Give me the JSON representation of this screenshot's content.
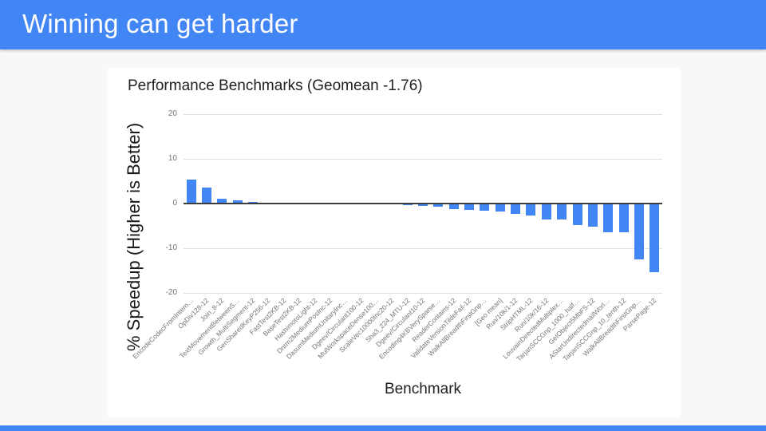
{
  "slide": {
    "title": "Winning can get harder",
    "accent_color": "#4285F4"
  },
  "chart": {
    "title": "Performance Benchmarks (Geomean -1.76)",
    "y_axis_title": "% Speedup (Higher is Better)",
    "x_axis_title": "Benchmark"
  },
  "chart_data": {
    "type": "bar",
    "title": "Performance Benchmarks (Geomean -1.76)",
    "xlabel": "Benchmark",
    "ylabel": "% Speedup (Higher is Better)",
    "ylim": [
      -20,
      20
    ],
    "yticks": [
      20,
      10,
      0,
      -10,
      -20
    ],
    "grid": true,
    "legend_position": "none",
    "bar_color": "#4285F4",
    "categories": [
      "EncodeCodecFromIntern…",
      "OpDiv128-12",
      "Join_8-12",
      "TextMovementBetweenS…",
      "Growth_MultiSegment-12",
      "GenSharedKeyP256-12",
      "FastTest2KB-12",
      "BaseTest2KB-12",
      "HashimotoLight-12",
      "Dnrm2MediumPosInc-12",
      "DasumMediumUnitaryInc…",
      "Dgeev/Circulant100-12",
      "MulWorkspaceDense100…",
      "ScaleVec10000Inc20-12",
      "Sha3_224_MTU-12",
      "Dgeev/Circulant10-12",
      "Encoding4KBVerySparse…",
      "ReaderContains-12",
      "ValidateVersionTildeFail-12",
      "WalkAllBreadthFirstGnp…",
      "[Geo mean]",
      "Run/10k/1-12",
      "StripHTML-12",
      "Run/10k/16-12",
      "LouvainDirectedMultiplex…",
      "TarjanSCCGnp_1000_half…",
      "GetObject5MbFS-12",
      "AStarUndirectedmailWorl…",
      "TarjanSCCGnp_10_tenth-12",
      "WalkAllBreadthFirstGnp…",
      "ParsePage-12"
    ],
    "values": [
      5.3,
      3.5,
      1.0,
      0.7,
      0.4,
      0.2,
      0.05,
      0.03,
      0.0,
      0.0,
      0.0,
      -0.02,
      -0.05,
      -0.1,
      -0.4,
      -0.5,
      -0.65,
      -1.2,
      -1.5,
      -1.6,
      -1.76,
      -2.3,
      -2.6,
      -3.5,
      -3.6,
      -4.8,
      -5.2,
      -6.4,
      -6.5,
      -12.5,
      -15.3
    ]
  }
}
